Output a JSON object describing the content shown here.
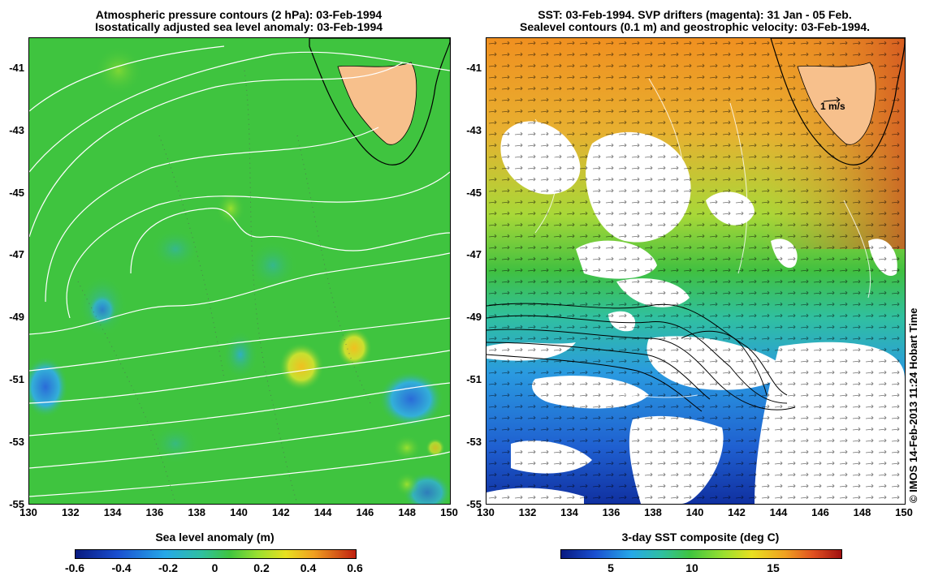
{
  "left_panel": {
    "title_line1": "Atmospheric pressure contours (2 hPa): 03-Feb-1994",
    "title_line2": "Isostatically adjusted sea level anomaly: 03-Feb-1994",
    "colorbar_title": "Sea level anomaly (m)",
    "colorbar_ticks": [
      "-0.6",
      "-0.4",
      "-0.2",
      "0",
      "0.2",
      "0.4",
      "0.6"
    ],
    "colors": {
      "ocean": "#3fc43f",
      "land": "#f7c08c"
    }
  },
  "right_panel": {
    "title_line1": "SST: 03-Feb-1994. SVP drifters (magenta): 31 Jan - 05 Feb.",
    "title_line2": "Sealevel contours (0.1 m) and geostrophic velocity: 03-Feb-1994.",
    "colorbar_title": "3-day SST composite (deg C)",
    "colorbar_ticks": [
      "5",
      "10",
      "15"
    ],
    "velocity_scale_label": "1 m/s",
    "colors": {
      "land": "#f7c08c"
    }
  },
  "y_ticks": [
    "-41",
    "-43",
    "-45",
    "-47",
    "-49",
    "-51",
    "-53",
    "-55"
  ],
  "x_ticks": [
    "130",
    "132",
    "134",
    "136",
    "138",
    "140",
    "142",
    "144",
    "146",
    "148",
    "150"
  ],
  "credit": "© IMOS 14-Feb-2013 11:24 Hobart Time"
}
